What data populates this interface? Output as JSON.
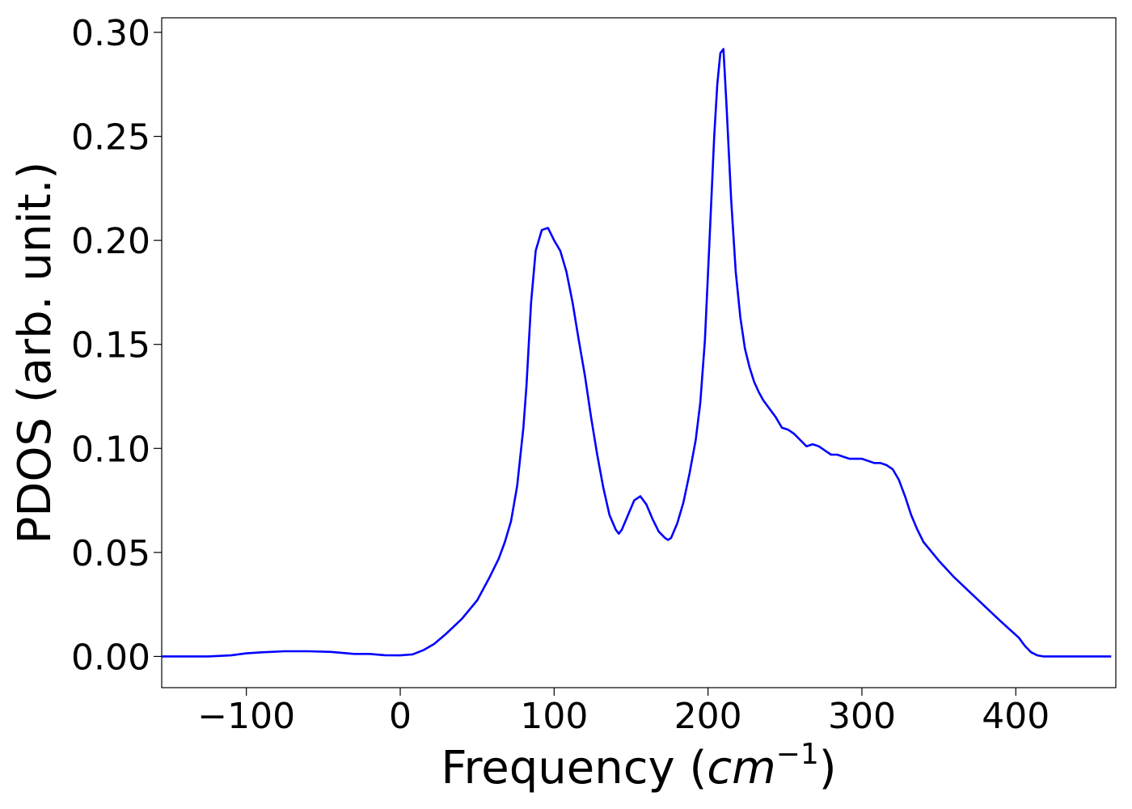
{
  "chart_data": {
    "type": "line",
    "title": "",
    "xlabel": "Frequency (cm−1)",
    "xlabel_parts": {
      "prefix": "Frequency (",
      "var": "cm",
      "sup": "−1",
      "suffix": ")"
    },
    "ylabel": "PDOS (arb. unit.)",
    "xlim": [
      -155,
      465
    ],
    "ylim": [
      -0.015,
      0.307
    ],
    "xticks": [
      -100,
      0,
      100,
      200,
      300,
      400
    ],
    "xtick_labels": [
      "−100",
      "0",
      "100",
      "200",
      "300",
      "400"
    ],
    "yticks": [
      0.0,
      0.05,
      0.1,
      0.15,
      0.2,
      0.25,
      0.3
    ],
    "ytick_labels": [
      "0.00",
      "0.05",
      "0.10",
      "0.15",
      "0.20",
      "0.25",
      "0.30"
    ],
    "grid": false,
    "series": [
      {
        "color": "#0000ff",
        "x": [
          -155,
          -125,
          -110,
          -100,
          -90,
          -75,
          -60,
          -45,
          -30,
          -20,
          -10,
          0,
          8,
          15,
          22,
          30,
          40,
          50,
          58,
          64,
          68,
          72,
          76,
          80,
          82,
          85,
          88,
          92,
          96,
          100,
          104,
          108,
          112,
          116,
          120,
          124,
          128,
          132,
          136,
          140,
          142,
          144,
          148,
          152,
          156,
          160,
          164,
          168,
          172,
          174,
          176,
          180,
          184,
          188,
          192,
          195,
          198,
          201,
          204,
          206,
          208,
          210,
          212,
          215,
          218,
          221,
          224,
          227,
          230,
          233,
          236,
          240,
          244,
          248,
          252,
          256,
          260,
          264,
          268,
          272,
          276,
          280,
          284,
          288,
          292,
          296,
          300,
          304,
          308,
          312,
          316,
          320,
          324,
          328,
          332,
          336,
          340,
          350,
          360,
          370,
          380,
          390,
          396,
          402,
          406,
          410,
          414,
          418,
          425,
          440,
          462
        ],
        "y": [
          0.0,
          0.0,
          0.0005,
          0.0015,
          0.002,
          0.0025,
          0.0025,
          0.0022,
          0.0012,
          0.0012,
          0.0006,
          0.0005,
          0.001,
          0.003,
          0.006,
          0.011,
          0.018,
          0.027,
          0.038,
          0.047,
          0.055,
          0.065,
          0.082,
          0.11,
          0.13,
          0.17,
          0.195,
          0.205,
          0.206,
          0.2,
          0.195,
          0.185,
          0.17,
          0.152,
          0.135,
          0.115,
          0.097,
          0.081,
          0.068,
          0.061,
          0.059,
          0.061,
          0.068,
          0.075,
          0.077,
          0.073,
          0.066,
          0.06,
          0.057,
          0.056,
          0.057,
          0.064,
          0.074,
          0.088,
          0.104,
          0.122,
          0.152,
          0.2,
          0.25,
          0.275,
          0.29,
          0.292,
          0.265,
          0.22,
          0.185,
          0.163,
          0.148,
          0.139,
          0.132,
          0.127,
          0.123,
          0.119,
          0.115,
          0.11,
          0.109,
          0.107,
          0.104,
          0.101,
          0.102,
          0.101,
          0.099,
          0.097,
          0.097,
          0.096,
          0.095,
          0.095,
          0.095,
          0.094,
          0.093,
          0.093,
          0.092,
          0.09,
          0.085,
          0.077,
          0.068,
          0.061,
          0.055,
          0.046,
          0.038,
          0.031,
          0.024,
          0.017,
          0.013,
          0.009,
          0.005,
          0.002,
          0.0005,
          0.0,
          0.0,
          0.0,
          0.0
        ]
      }
    ]
  }
}
